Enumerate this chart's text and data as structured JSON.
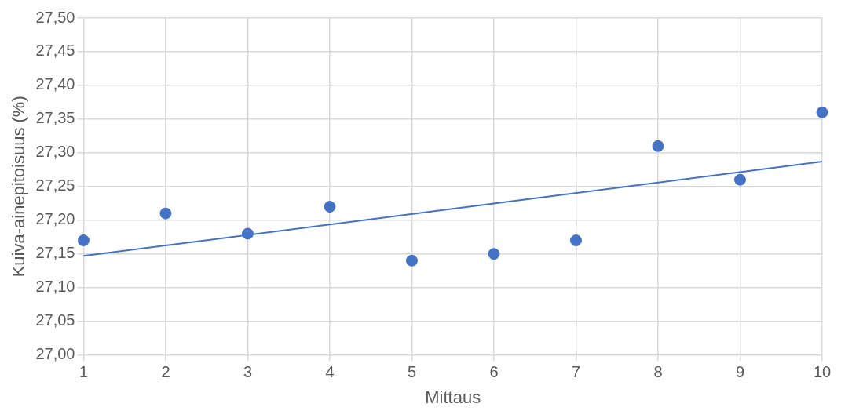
{
  "chart_data": {
    "type": "scatter",
    "xlabel": "Mittaus",
    "ylabel": "Kuiva-ainepitoisuus (%)",
    "xlim": [
      1,
      10
    ],
    "xticks": [
      1,
      2,
      3,
      4,
      5,
      6,
      7,
      8,
      9,
      10
    ],
    "ylim": [
      27.0,
      27.5
    ],
    "yticks": [
      {
        "value": 27.0,
        "label": "27,00"
      },
      {
        "value": 27.05,
        "label": "27,05"
      },
      {
        "value": 27.1,
        "label": "27,10"
      },
      {
        "value": 27.15,
        "label": "27,15"
      },
      {
        "value": 27.2,
        "label": "27,20"
      },
      {
        "value": 27.25,
        "label": "27,25"
      },
      {
        "value": 27.3,
        "label": "27,30"
      },
      {
        "value": 27.35,
        "label": "27,35"
      },
      {
        "value": 27.4,
        "label": "27,40"
      },
      {
        "value": 27.45,
        "label": "27,45"
      },
      {
        "value": 27.5,
        "label": "27,50"
      }
    ],
    "grid": true,
    "legend": false,
    "marker": "circle",
    "series": [
      {
        "type": "scatter",
        "color": "#4472c4",
        "x": [
          1,
          2,
          3,
          4,
          5,
          6,
          7,
          8,
          9,
          10
        ],
        "values": [
          27.17,
          27.21,
          27.18,
          27.22,
          27.14,
          27.15,
          27.17,
          27.31,
          27.26,
          27.36
        ]
      },
      {
        "type": "line",
        "color": "#4472c4",
        "line_style": "solid",
        "marker": "none",
        "x": [
          1,
          10
        ],
        "values": [
          27.147,
          27.287
        ]
      }
    ]
  }
}
